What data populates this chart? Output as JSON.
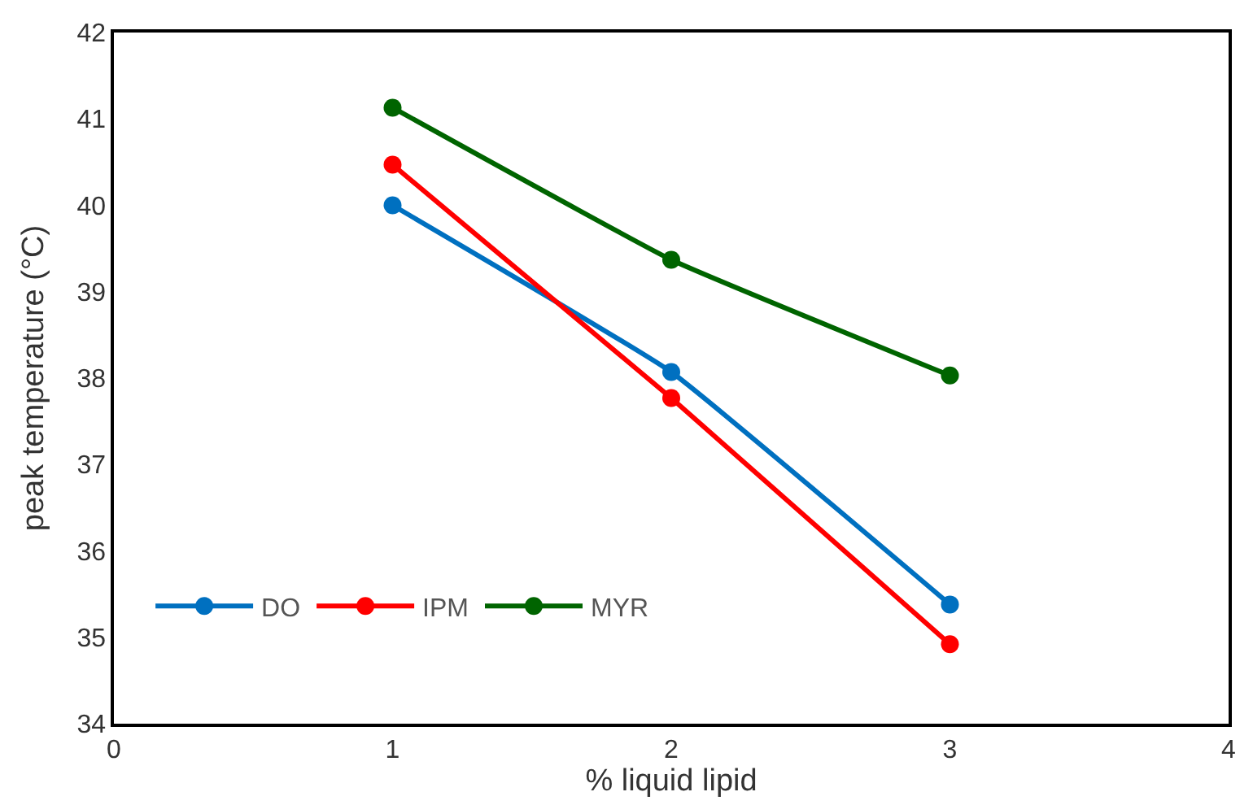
{
  "chart_data": {
    "type": "line",
    "xlabel": "% liquid lipid",
    "ylabel": "peak temperature (°C)",
    "x": [
      1,
      2,
      3
    ],
    "series": [
      {
        "name": "DO",
        "color": "#0070c0",
        "values": [
          40.0,
          38.07,
          35.38
        ]
      },
      {
        "name": "IPM",
        "color": "#ff0000",
        "values": [
          40.47,
          37.77,
          34.92
        ]
      },
      {
        "name": "MYR",
        "color": "#006400",
        "values": [
          41.13,
          39.37,
          38.03
        ]
      }
    ],
    "xlim": [
      0,
      4
    ],
    "xticks": [
      0,
      1,
      2,
      3,
      4
    ],
    "ylim": [
      34,
      42
    ],
    "yticks": [
      34,
      35,
      36,
      37,
      38,
      39,
      40,
      41,
      42
    ],
    "legend": "bottom left",
    "marker": "circle",
    "line_style": "solid"
  }
}
